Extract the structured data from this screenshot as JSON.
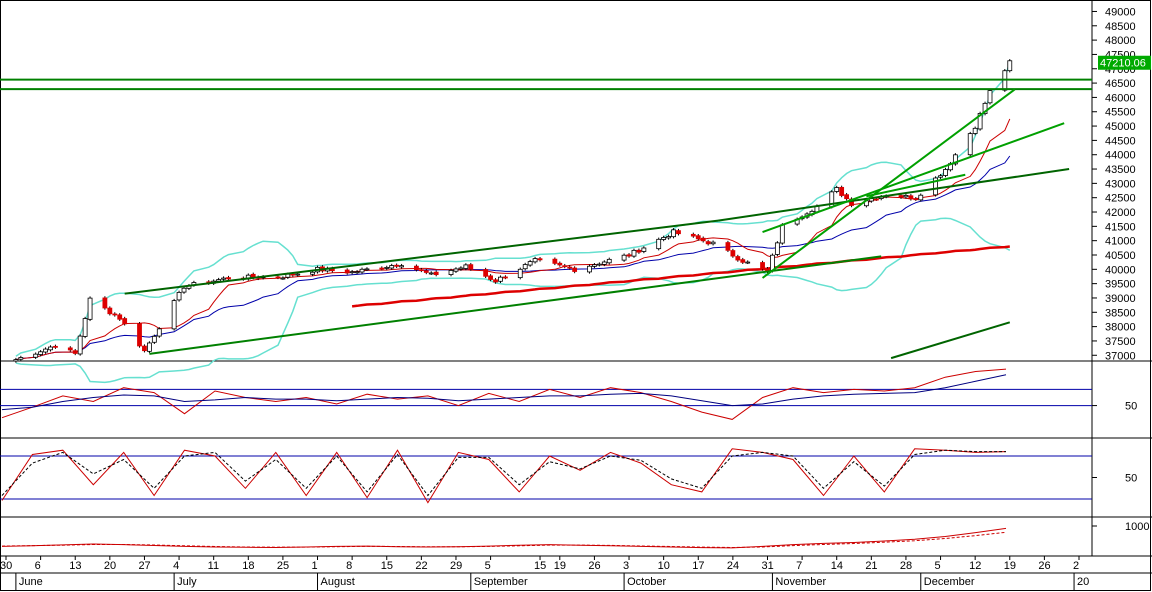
{
  "chart_data": [
    {
      "type": "candlestick",
      "panel": "price",
      "ylim": [
        36800,
        49400
      ],
      "y_ticks": [
        37000,
        37500,
        38000,
        38500,
        39000,
        39500,
        40000,
        40500,
        41000,
        41500,
        42000,
        42500,
        43000,
        43500,
        44000,
        44500,
        45000,
        45500,
        46000,
        46500,
        47000,
        47500,
        48000,
        48500,
        49000
      ],
      "last_price": "47210.06",
      "horizontal_lines": [
        46620,
        46290
      ],
      "anchors": [
        {
          "date": "2023-06-01",
          "close": 36850
        },
        {
          "date": "2023-06-09",
          "close": 37350
        },
        {
          "date": "2023-06-13",
          "close": 37050
        },
        {
          "date": "2023-06-16",
          "close": 38950
        },
        {
          "date": "2023-06-22",
          "close": 38300
        },
        {
          "date": "2023-06-27",
          "close": 37150
        },
        {
          "date": "2023-07-05",
          "close": 39400
        },
        {
          "date": "2023-07-14",
          "close": 39700
        },
        {
          "date": "2023-07-25",
          "close": 39750
        },
        {
          "date": "2023-08-01",
          "close": 40000
        },
        {
          "date": "2023-08-08",
          "close": 39900
        },
        {
          "date": "2023-08-18",
          "close": 40200
        },
        {
          "date": "2023-08-24",
          "close": 39800
        },
        {
          "date": "2023-08-31",
          "close": 40100
        },
        {
          "date": "2023-09-06",
          "close": 39600
        },
        {
          "date": "2023-09-14",
          "close": 40300
        },
        {
          "date": "2023-09-22",
          "close": 40000
        },
        {
          "date": "2023-10-03",
          "close": 40500
        },
        {
          "date": "2023-10-12",
          "close": 41300
        },
        {
          "date": "2023-10-20",
          "close": 40900
        },
        {
          "date": "2023-10-26",
          "close": 40300
        },
        {
          "date": "2023-10-31",
          "close": 39900
        },
        {
          "date": "2023-11-03",
          "close": 41500
        },
        {
          "date": "2023-11-10",
          "close": 42200
        },
        {
          "date": "2023-11-14",
          "close": 42800
        },
        {
          "date": "2023-11-17",
          "close": 42300
        },
        {
          "date": "2023-11-24",
          "close": 42600
        },
        {
          "date": "2023-11-30",
          "close": 42500
        },
        {
          "date": "2023-12-06",
          "close": 43500
        },
        {
          "date": "2023-12-12",
          "close": 45000
        },
        {
          "date": "2023-12-15",
          "close": 46200
        },
        {
          "date": "2023-12-19",
          "close": 47210
        }
      ],
      "trendlines": [
        {
          "from": [
            "2023-06-23",
            39150
          ],
          "to": [
            "2023-10-21",
            41700
          ],
          "color": "#006400"
        },
        {
          "from": [
            "2023-06-28",
            37050
          ],
          "to": [
            "2023-11-23",
            40450
          ],
          "color": "#008000"
        },
        {
          "from": [
            "2023-10-21",
            41700
          ],
          "to": [
            "2023-12-31",
            43500
          ],
          "color": "#006400"
        },
        {
          "from": [
            "2023-10-30",
            39700
          ],
          "to": [
            "2023-12-20",
            46280
          ],
          "color": "#00a000"
        },
        {
          "from": [
            "2023-10-30",
            41300
          ],
          "to": [
            "2023-12-30",
            45100
          ],
          "color": "#00a000"
        },
        {
          "from": [
            "2023-11-20",
            42550
          ],
          "to": [
            "2023-12-10",
            43300
          ],
          "color": "#00a000"
        },
        {
          "from": [
            "2023-11-25",
            36900
          ],
          "to": [
            "2023-12-19",
            38150
          ],
          "color": "#006400"
        }
      ]
    },
    {
      "type": "line",
      "panel": "rsi",
      "y_ticks": [
        50
      ],
      "levels": [
        70,
        50
      ],
      "series": [
        {
          "color": "#cc0000",
          "values": [
            35,
            48,
            62,
            55,
            72,
            66,
            40,
            68,
            60,
            55,
            60,
            52,
            64,
            58,
            62,
            50,
            65,
            55,
            70,
            60,
            72,
            66,
            55,
            42,
            33,
            60,
            72,
            66,
            70,
            68,
            72,
            85,
            92,
            95
          ]
        },
        {
          "color": "#000080",
          "values": [
            45,
            48,
            55,
            60,
            63,
            62,
            55,
            57,
            60,
            58,
            58,
            56,
            58,
            60,
            59,
            56,
            58,
            60,
            62,
            62,
            64,
            65,
            62,
            56,
            50,
            52,
            58,
            62,
            64,
            65,
            66,
            72,
            80,
            88
          ]
        }
      ]
    },
    {
      "type": "line",
      "panel": "stochastic",
      "y_ticks": [
        50
      ],
      "levels": [
        80,
        20
      ],
      "series": [
        {
          "color": "#cc0000",
          "values": [
            18,
            82,
            88,
            40,
            85,
            25,
            88,
            80,
            35,
            85,
            25,
            85,
            22,
            88,
            15,
            85,
            75,
            30,
            80,
            60,
            85,
            70,
            40,
            30,
            90,
            85,
            75,
            25,
            80,
            30,
            90,
            88,
            85,
            86
          ]
        },
        {
          "color": "#000000",
          "values": [
            25,
            70,
            85,
            55,
            75,
            35,
            80,
            85,
            45,
            75,
            35,
            80,
            30,
            82,
            25,
            78,
            78,
            40,
            72,
            62,
            80,
            74,
            48,
            35,
            80,
            85,
            80,
            35,
            72,
            38,
            82,
            88,
            86,
            86
          ]
        }
      ]
    },
    {
      "type": "line",
      "panel": "volume-indicator",
      "y_ticks": [
        1000
      ],
      "series": [
        {
          "color": "#cc0000",
          "values": [
            320,
            340,
            370,
            400,
            380,
            350,
            320,
            300,
            290,
            285,
            300,
            320,
            330,
            310,
            300,
            310,
            330,
            360,
            380,
            360,
            340,
            320,
            300,
            280,
            270,
            320,
            380,
            420,
            450,
            500,
            560,
            650,
            780,
            920
          ]
        },
        {
          "color": "#cc0000",
          "values": [
            330,
            345,
            360,
            385,
            385,
            365,
            340,
            315,
            300,
            292,
            296,
            310,
            322,
            318,
            308,
            308,
            320,
            340,
            362,
            362,
            352,
            335,
            315,
            295,
            282,
            300,
            345,
            385,
            418,
            460,
            510,
            585,
            680,
            790
          ]
        }
      ]
    },
    {
      "type": "axis",
      "day_ticks": [
        {
          "label": "30",
          "date": "2023-05-30"
        },
        {
          "label": "6",
          "date": "2023-06-06"
        },
        {
          "label": "13",
          "date": "2023-06-13"
        },
        {
          "label": "20",
          "date": "2023-06-20"
        },
        {
          "label": "27",
          "date": "2023-06-27"
        },
        {
          "label": "4",
          "date": "2023-07-04"
        },
        {
          "label": "11",
          "date": "2023-07-11"
        },
        {
          "label": "18",
          "date": "2023-07-18"
        },
        {
          "label": "25",
          "date": "2023-07-25"
        },
        {
          "label": "1",
          "date": "2023-08-01"
        },
        {
          "label": "8",
          "date": "2023-08-08"
        },
        {
          "label": "15",
          "date": "2023-08-15"
        },
        {
          "label": "22",
          "date": "2023-08-22"
        },
        {
          "label": "29",
          "date": "2023-08-29"
        },
        {
          "label": "5",
          "date": "2023-09-05"
        },
        {
          "label": "15",
          "date": "2023-09-15"
        },
        {
          "label": "19",
          "date": "2023-09-19"
        },
        {
          "label": "26",
          "date": "2023-09-26"
        },
        {
          "label": "3",
          "date": "2023-10-03"
        },
        {
          "label": "10",
          "date": "2023-10-10"
        },
        {
          "label": "17",
          "date": "2023-10-17"
        },
        {
          "label": "24",
          "date": "2023-10-24"
        },
        {
          "label": "31",
          "date": "2023-10-31"
        },
        {
          "label": "7",
          "date": "2023-11-07"
        },
        {
          "label": "14",
          "date": "2023-11-14"
        },
        {
          "label": "21",
          "date": "2023-11-21"
        },
        {
          "label": "28",
          "date": "2023-11-28"
        },
        {
          "label": "5",
          "date": "2023-12-05"
        },
        {
          "label": "12",
          "date": "2023-12-12"
        },
        {
          "label": "19",
          "date": "2023-12-19"
        },
        {
          "label": "26",
          "date": "2023-12-26"
        },
        {
          "label": "2",
          "date": "2024-01-02"
        }
      ],
      "month_labels": [
        {
          "label": "June",
          "date": "2023-06-01"
        },
        {
          "label": "July",
          "date": "2023-07-03"
        },
        {
          "label": "August",
          "date": "2023-08-01"
        },
        {
          "label": "September",
          "date": "2023-09-01"
        },
        {
          "label": "October",
          "date": "2023-10-02"
        },
        {
          "label": "November",
          "date": "2023-11-01"
        },
        {
          "label": "December",
          "date": "2023-12-01"
        },
        {
          "label": "20",
          "date": "2024-01-01"
        }
      ]
    }
  ]
}
